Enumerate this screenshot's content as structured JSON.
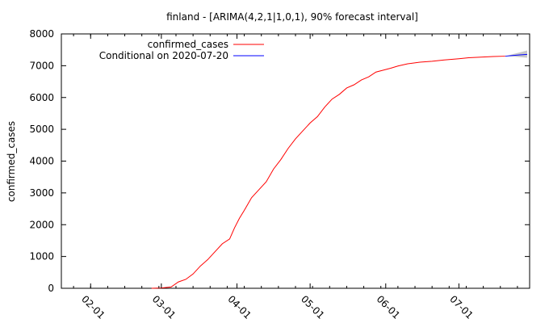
{
  "chart_data": {
    "type": "line",
    "title": "finland -  [ARIMA(4,2,1|1,0,1), 90% forecast interval]",
    "xlabel": "",
    "ylabel": "confirmed_cases",
    "ylim": [
      0,
      8000
    ],
    "yticks": [
      0,
      1000,
      2000,
      3000,
      4000,
      5000,
      6000,
      7000,
      8000
    ],
    "xlim": [
      "2020-01-20",
      "2020-07-30"
    ],
    "xticks": [
      "2020-02-01",
      "2020-03-01",
      "2020-04-01",
      "2020-05-01",
      "2020-06-01",
      "2020-07-01"
    ],
    "xtick_labels": [
      "02-01",
      "03-01",
      "04-01",
      "05-01",
      "06-01",
      "07-01"
    ],
    "grid": false,
    "legend_position": "top-left",
    "series": [
      {
        "name": "confirmed_cases",
        "color": "#ff0000",
        "x": [
          "2020-02-26",
          "2020-03-01",
          "2020-03-05",
          "2020-03-08",
          "2020-03-11",
          "2020-03-14",
          "2020-03-17",
          "2020-03-20",
          "2020-03-23",
          "2020-03-26",
          "2020-03-29",
          "2020-03-31",
          "2020-04-02",
          "2020-04-04",
          "2020-04-07",
          "2020-04-10",
          "2020-04-13",
          "2020-04-16",
          "2020-04-19",
          "2020-04-22",
          "2020-04-25",
          "2020-04-28",
          "2020-05-01",
          "2020-05-04",
          "2020-05-07",
          "2020-05-10",
          "2020-05-13",
          "2020-05-16",
          "2020-05-19",
          "2020-05-22",
          "2020-05-25",
          "2020-05-28",
          "2020-05-31",
          "2020-06-03",
          "2020-06-06",
          "2020-06-10",
          "2020-06-15",
          "2020-06-20",
          "2020-06-25",
          "2020-07-01",
          "2020-07-05",
          "2020-07-10",
          "2020-07-15",
          "2020-07-20"
        ],
        "values": [
          0,
          10,
          40,
          200,
          280,
          450,
          700,
          900,
          1150,
          1400,
          1550,
          1900,
          2200,
          2450,
          2850,
          3100,
          3350,
          3750,
          4050,
          4400,
          4700,
          4950,
          5200,
          5400,
          5700,
          5950,
          6100,
          6300,
          6400,
          6550,
          6650,
          6800,
          6860,
          6920,
          6990,
          7060,
          7110,
          7140,
          7180,
          7220,
          7250,
          7270,
          7290,
          7300
        ]
      },
      {
        "name": "Conditional on 2020-07-20",
        "color": "#0000ff",
        "x": [
          "2020-07-20",
          "2020-07-23",
          "2020-07-26",
          "2020-07-29"
        ],
        "values": [
          7300,
          7320,
          7340,
          7355
        ],
        "interval_lower": [
          7300,
          7290,
          7270,
          7250
        ],
        "interval_upper": [
          7300,
          7360,
          7420,
          7480
        ],
        "interval_label": "90% forecast interval"
      }
    ]
  }
}
